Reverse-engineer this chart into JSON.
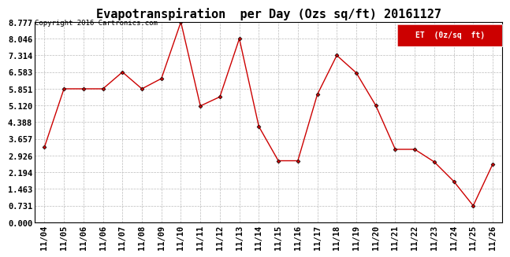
{
  "title": "Evapotranspiration  per Day (Ozs sq/ft) 20161127",
  "copyright": "Copyright 2016 Cartronics.com",
  "legend_label": "ET  (0z/sq  ft)",
  "x_labels": [
    "11/04",
    "11/05",
    "11/06",
    "11/06",
    "11/07",
    "11/08",
    "11/09",
    "11/10",
    "11/11",
    "11/12",
    "11/13",
    "11/14",
    "11/15",
    "11/16",
    "11/17",
    "11/18",
    "11/19",
    "11/20",
    "11/21",
    "11/22",
    "11/23",
    "11/24",
    "11/25",
    "11/26"
  ],
  "values": [
    3.3,
    5.851,
    5.851,
    5.851,
    6.583,
    5.851,
    6.3,
    8.777,
    5.1,
    5.5,
    8.046,
    4.2,
    2.7,
    2.7,
    5.6,
    7.314,
    6.55,
    5.12,
    3.2,
    3.2,
    2.65,
    1.8,
    0.731,
    2.55
  ],
  "yticks": [
    0.0,
    0.731,
    1.463,
    2.194,
    2.926,
    3.657,
    4.388,
    5.12,
    5.851,
    6.583,
    7.314,
    8.046,
    8.777
  ],
  "ymax": 8.777,
  "ymin": 0.0,
  "line_color": "#cc0000",
  "marker": "D",
  "marker_size": 2.5,
  "bg_color": "#ffffff",
  "grid_color": "#bbbbbb",
  "title_fontsize": 11,
  "tick_fontsize": 7.5,
  "legend_bg": "#cc0000",
  "legend_text_color": "#ffffff"
}
